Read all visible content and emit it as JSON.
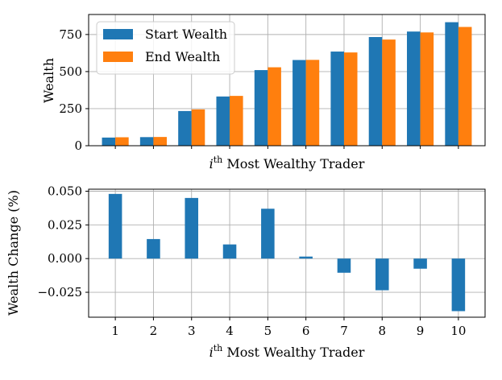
{
  "chart_data": [
    {
      "type": "bar",
      "categories": [
        "1",
        "2",
        "3",
        "4",
        "5",
        "6",
        "7",
        "8",
        "9",
        "10"
      ],
      "series": [
        {
          "name": "Start Wealth",
          "color": "#1f77b4",
          "values": [
            55,
            58,
            234,
            332,
            510,
            578,
            635,
            733,
            770,
            833
          ]
        },
        {
          "name": "End Wealth",
          "color": "#ff7f0e",
          "values": [
            57,
            59,
            245,
            336,
            529,
            579,
            629,
            716,
            764,
            801
          ]
        }
      ],
      "xlabel_base": "i",
      "xlabel_sup": "th",
      "xlabel_rest": " Most Wealthy Trader",
      "ylabel": "Wealth",
      "ylim": [
        0,
        885
      ],
      "yticks": [
        0,
        250,
        500,
        750
      ],
      "show_xtick_labels": false,
      "grid": true,
      "legend": "top-left"
    },
    {
      "type": "bar",
      "categories": [
        "1",
        "2",
        "3",
        "4",
        "5",
        "6",
        "7",
        "8",
        "9",
        "10"
      ],
      "series": [
        {
          "color": "#1f77b4",
          "values": [
            0.048,
            0.0145,
            0.045,
            0.0105,
            0.037,
            0.0015,
            -0.0105,
            -0.0235,
            -0.0075,
            -0.039
          ]
        }
      ],
      "xlabel_base": "i",
      "xlabel_sup": "th",
      "xlabel_rest": " Most Wealthy Trader",
      "ylabel": "Wealth Change (%)",
      "ylim": [
        -0.0435,
        0.0515
      ],
      "yticks": [
        -0.025,
        0.0,
        0.025,
        0.05
      ],
      "ytick_labels": [
        "−0.025",
        "0.000",
        "0.025",
        "0.050"
      ],
      "show_xtick_labels": true,
      "grid": true
    }
  ]
}
